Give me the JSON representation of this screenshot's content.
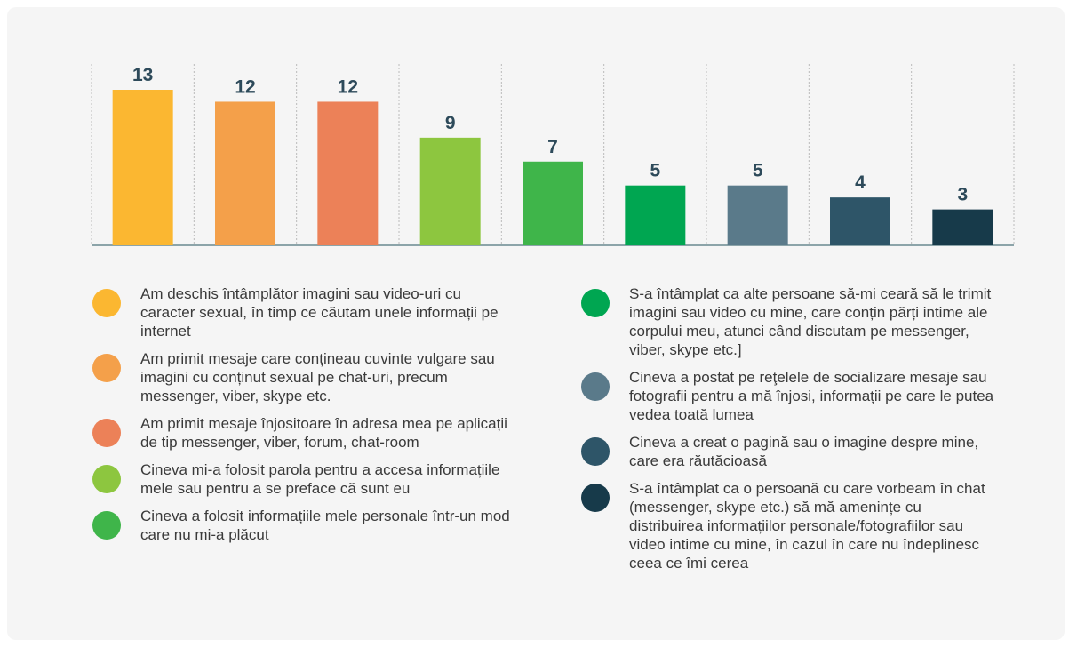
{
  "chart_data": {
    "type": "bar",
    "categories": [
      "Am deschis întâmplător imagini sau video-uri cu caracter sexual, în timp ce căutam unele informații pe internet",
      "Am primit mesaje care conțineau cuvinte vulgare sau imagini cu conținut sexual pe chat-uri, precum messenger, viber, skype etc.",
      "Am primit mesaje înjositoare în adresa mea pe aplicații de tip messenger, viber, forum, chat-room",
      "Cineva mi-a folosit parola pentru a accesa informațiile mele sau pentru a se preface că sunt eu",
      "Cineva a folosit informațiile mele personale într-un mod care nu mi-a plăcut",
      "S-a întâmplat ca alte persoane să-mi ceară să le trimit imagini sau video cu mine, care conțin părți intime ale corpului meu, atunci când discutam pe messenger, viber, skype etc.]",
      "Cineva a postat pe reţelele de socializare mesaje sau fotografii pentru a mă înjosi, informații pe care le putea vedea toată lumea",
      "Cineva a creat o pagină sau o imagine despre mine, care era răutăcioasă",
      "S-a întâmplat ca o persoană cu care vorbeam în chat (messenger, skype etc.) să mă amenințe cu distribuirea informațiilor personale/fotografiilor sau video intime cu mine, în cazul în care nu îndeplinesc ceea ce îmi cerea"
    ],
    "values": [
      13,
      12,
      12,
      9,
      7,
      5,
      5,
      4,
      3
    ],
    "colors": [
      "#fbb731",
      "#f4a04a",
      "#ec8158",
      "#8dc63f",
      "#3fb54a",
      "#00a651",
      "#5a7a8a",
      "#2e5568",
      "#173a4a"
    ]
  }
}
